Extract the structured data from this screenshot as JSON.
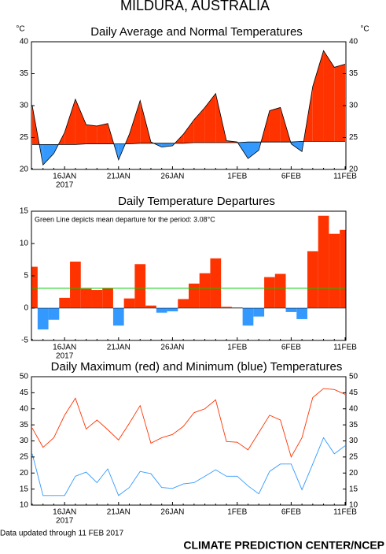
{
  "header": {
    "title": "MILDURA, AUSTRALIA"
  },
  "chart_data": [
    {
      "type": "area",
      "title": "Daily Average and Normal Temperatures",
      "y_unit": "°C",
      "categories": [
        null,
        null,
        null,
        "16JAN",
        null,
        null,
        null,
        null,
        "21JAN",
        null,
        null,
        null,
        null,
        "26JAN",
        null,
        null,
        null,
        null,
        null,
        "1FEB",
        null,
        null,
        null,
        null,
        "6FEB",
        null,
        null,
        null,
        null,
        "11FEB"
      ],
      "year_label": "2017",
      "series": [
        {
          "color": "#000000",
          "values": [
            30,
            20.7,
            22.5,
            25.8,
            31,
            27,
            26.8,
            27.2,
            21.5,
            25.5,
            30.8,
            24.3,
            23.5,
            23.7,
            25.5,
            27.8,
            29.7,
            31.9,
            24.5,
            24.3,
            21.7,
            23,
            29.2,
            29.7,
            24,
            22.8,
            33,
            38.6,
            36,
            36.5
          ]
        },
        {
          "color": "#000000",
          "values": [
            23.9,
            23.9,
            23.9,
            23.9,
            23.9,
            24.0,
            24.0,
            24.0,
            24.0,
            24.0,
            24.1,
            24.1,
            24.1,
            24.1,
            24.1,
            24.2,
            24.2,
            24.2,
            24.2,
            24.2,
            24.3,
            24.3,
            24.3,
            24.3,
            24.3,
            24.4,
            24.4,
            24.4,
            24.4,
            24.4
          ]
        }
      ],
      "fill_above": "#ff3300",
      "fill_below": "#3399ff",
      "ylim": [
        20,
        40
      ],
      "yticks": [
        20,
        25,
        30,
        35,
        40
      ],
      "right_axis": true
    },
    {
      "type": "bar",
      "title": "Daily Temperature Departures",
      "annotation": "Green Line depicts mean departure for the period: 3.08°C",
      "categories": [
        null,
        null,
        null,
        "16JAN",
        null,
        null,
        null,
        null,
        "21JAN",
        null,
        null,
        null,
        null,
        "26JAN",
        null,
        null,
        null,
        null,
        null,
        "1FEB",
        null,
        null,
        null,
        null,
        "6FEB",
        null,
        null,
        null,
        null,
        "11FEB"
      ],
      "year_label": "2017",
      "values": [
        6.4,
        -3.3,
        -1.8,
        1.6,
        7.2,
        3.0,
        2.8,
        3.1,
        -2.7,
        1.5,
        6.8,
        0.4,
        -0.7,
        -0.5,
        1.4,
        3.8,
        5.4,
        7.7,
        0.2,
        0.1,
        -2.7,
        -1.3,
        4.8,
        5.3,
        -0.6,
        -1.7,
        8.8,
        14.3,
        11.5,
        12.1
      ],
      "pos_color": "#ff3300",
      "neg_color": "#3399ff",
      "mean": 3.08,
      "mean_color": "#00cc00",
      "ylim": [
        -5,
        15
      ],
      "yticks": [
        -5,
        0,
        5,
        10,
        15
      ],
      "right_axis": false
    },
    {
      "type": "line",
      "title": "Daily Maximum (red) and Minimum (blue) Temperatures",
      "categories": [
        null,
        null,
        null,
        "16JAN",
        null,
        null,
        null,
        null,
        "21JAN",
        null,
        null,
        null,
        null,
        "26JAN",
        null,
        null,
        null,
        null,
        null,
        "1FEB",
        null,
        null,
        null,
        null,
        "6FEB",
        null,
        null,
        null,
        null,
        "11FEB"
      ],
      "year_label": "2017",
      "series": [
        {
          "color": "#ff3300",
          "values": [
            34,
            28,
            31,
            38,
            43.3,
            33.7,
            36.5,
            33.5,
            30.3,
            35.5,
            41,
            29.3,
            31,
            32,
            34.5,
            38.8,
            40,
            42.8,
            29.8,
            29.6,
            27.2,
            32.6,
            38,
            36.5,
            25,
            31,
            43.5,
            46.3,
            46,
            44.5
          ]
        },
        {
          "color": "#3399ff",
          "values": [
            26,
            13,
            13,
            13,
            19,
            20.3,
            17,
            21.3,
            13,
            15.5,
            20.5,
            19.8,
            15.5,
            15.2,
            16.6,
            17,
            19,
            21,
            19,
            19,
            16,
            13.5,
            20.5,
            22.8,
            22.8,
            14.8,
            22.8,
            31,
            26,
            28.5
          ]
        }
      ],
      "ylim": [
        10,
        50
      ],
      "yticks": [
        10,
        15,
        20,
        25,
        30,
        35,
        40,
        45,
        50
      ],
      "right_axis": true
    }
  ],
  "footer": {
    "updated": "Data updated through 11 FEB 2017",
    "credit": "CLIMATE PREDICTION CENTER/NCEP"
  }
}
